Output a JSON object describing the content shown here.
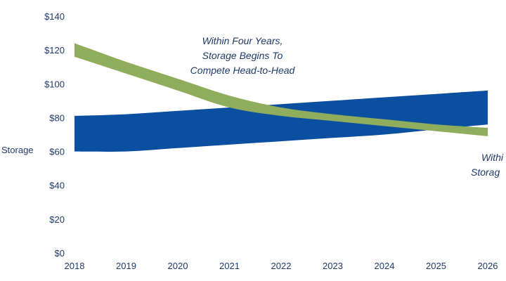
{
  "chart_data": {
    "type": "area",
    "ylabel": "Storage",
    "ylim": [
      0,
      140
    ],
    "x": [
      2018,
      2019,
      2020,
      2021,
      2022,
      2023,
      2024,
      2025,
      2026
    ],
    "x_tick_labels": [
      "2018",
      "2019",
      "2020",
      "2021",
      "2022",
      "2023",
      "2024",
      "2025",
      "2026"
    ],
    "y_tick_labels": [
      "$0",
      "$20",
      "$40",
      "$60",
      "$80",
      "$100",
      "$120",
      "$140"
    ],
    "y_ticks": [
      0,
      20,
      40,
      60,
      80,
      100,
      120,
      140
    ],
    "grid": false,
    "series": [
      {
        "kind": "band",
        "color": "#0b4fa0",
        "lower": [
          60,
          60,
          62,
          64,
          66,
          68,
          70,
          73,
          76
        ],
        "upper": [
          81,
          82,
          84,
          86,
          88,
          90,
          92,
          94,
          96
        ]
      },
      {
        "kind": "band",
        "color": "#8fad5c",
        "lower": [
          116,
          106,
          96,
          86,
          81,
          78,
          75,
          72,
          69
        ],
        "upper": [
          124,
          113,
          103,
          93,
          86,
          82,
          79,
          76,
          74
        ]
      }
    ],
    "annotations": [
      {
        "lines": [
          "Within Four Years,",
          "Storage Begins To",
          "Compete Head-to-Head"
        ]
      },
      {
        "lines": [
          "Withi",
          "Storag"
        ]
      }
    ]
  }
}
